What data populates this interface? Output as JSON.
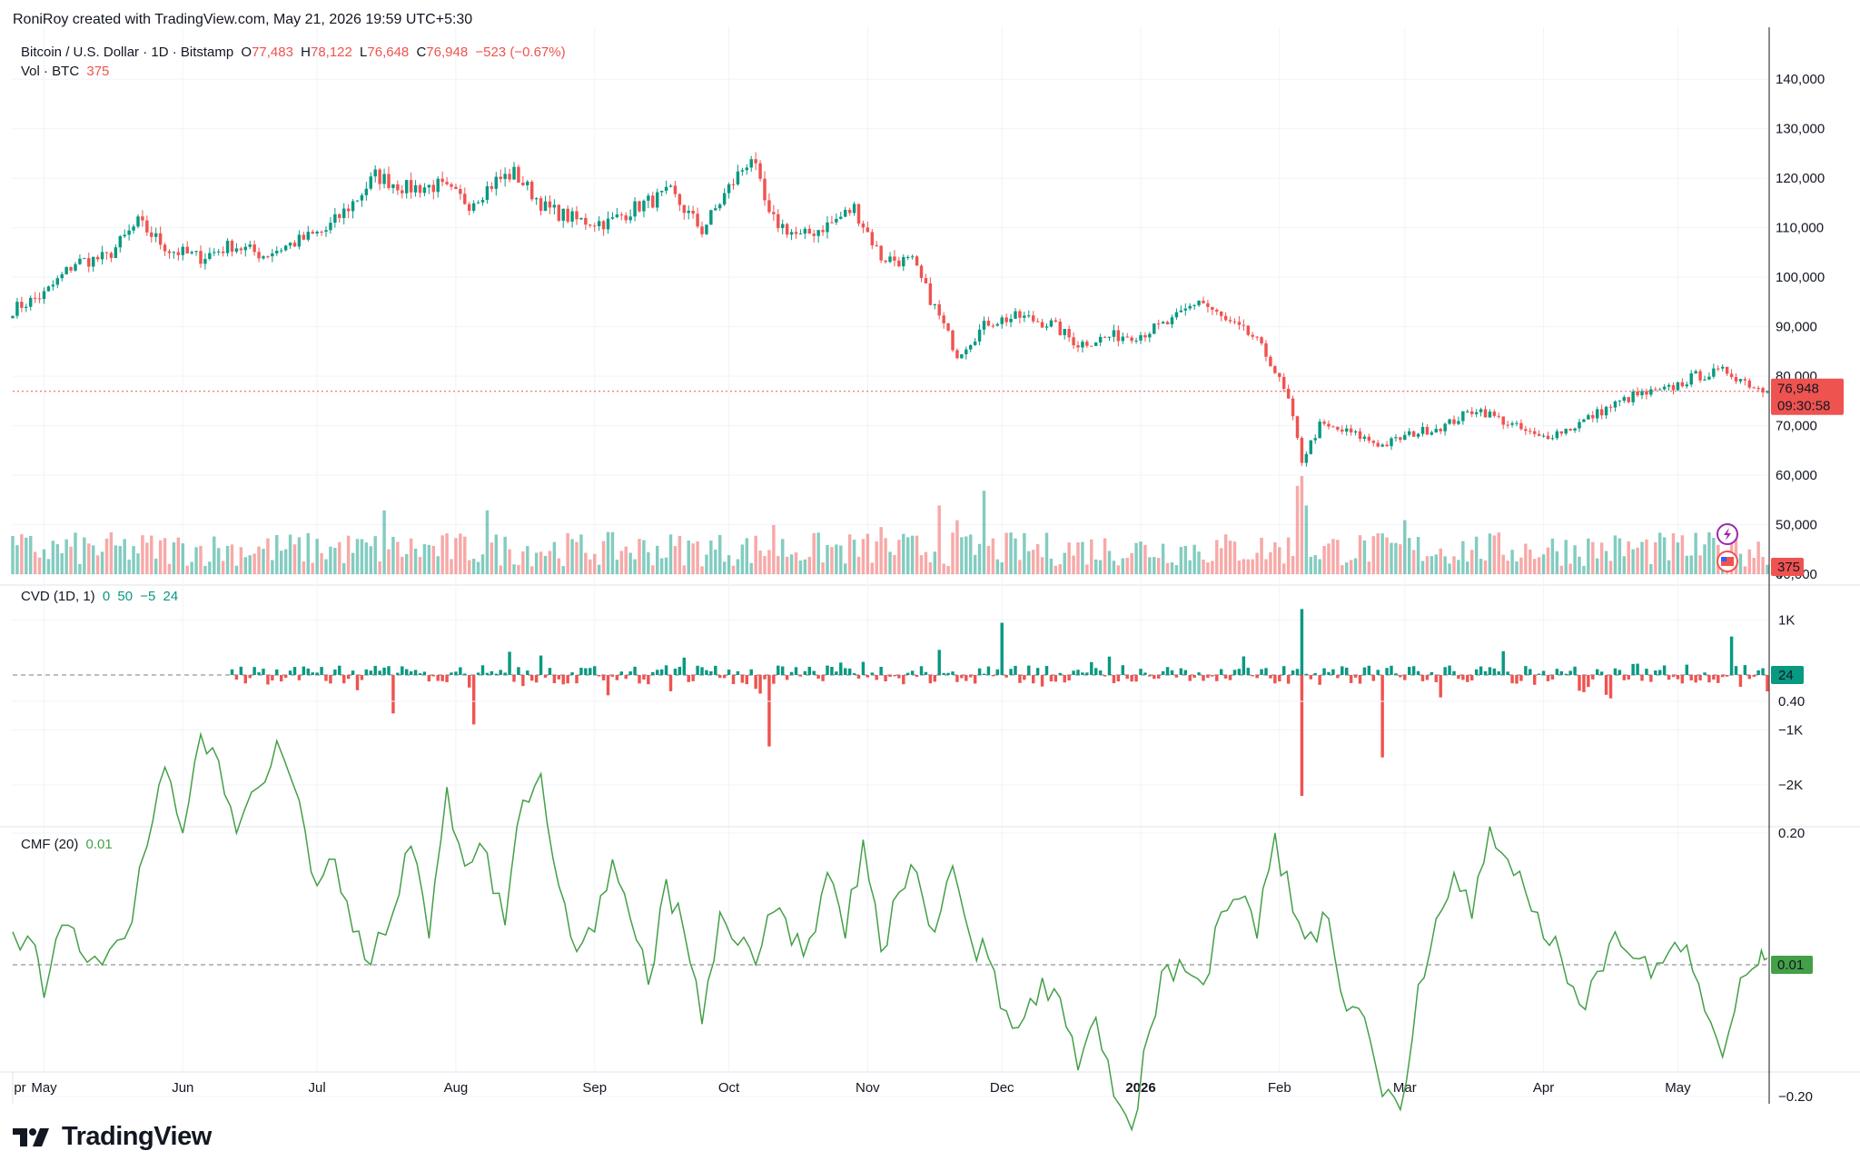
{
  "header": {
    "credit": "RoniRoy created with TradingView.com, May 21, 2026 19:59 UTC+5:30"
  },
  "legend_price": {
    "symbol": "Bitcoin / U.S. Dollar · 1D · Bitstamp",
    "open_label": "O",
    "open": "77,483",
    "high_label": "H",
    "high": "78,122",
    "low_label": "L",
    "low": "76,648",
    "close_label": "C",
    "close": "76,948",
    "change": "−523 (−0.67%)"
  },
  "legend_volume": {
    "label": "Vol · BTC",
    "value": "375"
  },
  "legend_cvd": {
    "label": "CVD (1D, 1)",
    "v1": "0",
    "v2": "50",
    "v3": "−5",
    "v4": "24"
  },
  "legend_cmf": {
    "label": "CMF (20)",
    "value": "0.01"
  },
  "badges": {
    "price": "76,948",
    "countdown": "09:30:58",
    "volume": "375",
    "cvd": "24",
    "cmf": "0.01"
  },
  "footer": {
    "brand": "TradingView"
  },
  "colors": {
    "up": "#089981",
    "down": "#ef5350",
    "cmf_line": "#43a047",
    "grid": "#f0f3fa"
  },
  "icons": [
    "flash-icon",
    "us-flag-icon",
    "tradingview-logo-icon"
  ],
  "chart_data": [
    {
      "type": "candlestick",
      "title": "Bitcoin / U.S. Dollar · 1D · Bitstamp",
      "x_axis": {
        "start": "2025-04-24",
        "end": "2026-05-21",
        "tick_labels": [
          "pr",
          "May",
          "Jun",
          "Jul",
          "Aug",
          "Sep",
          "Oct",
          "Nov",
          "Dec",
          "2026",
          "Feb",
          "Mar",
          "Apr",
          "May"
        ]
      },
      "y_axis": {
        "range": [
          40000,
          145000
        ],
        "tick_labels": [
          "140,000",
          "130,000",
          "120,000",
          "110,000",
          "100,000",
          "90,000",
          "80,000",
          "70,000",
          "60,000",
          "50,000",
          "40,000"
        ]
      },
      "series": [
        {
          "name": "Bitcoin / U.S. Dollar",
          "close_path": [
            [
              "2025-04-24",
              93500
            ],
            [
              "2025-05-01",
              96500
            ],
            [
              "2025-05-08",
              103000
            ],
            [
              "2025-05-15",
              104000
            ],
            [
              "2025-05-22",
              111000
            ],
            [
              "2025-05-29",
              105500
            ],
            [
              "2025-06-05",
              104000
            ],
            [
              "2025-06-12",
              106500
            ],
            [
              "2025-06-19",
              104500
            ],
            [
              "2025-06-26",
              107000
            ],
            [
              "2025-07-03",
              109500
            ],
            [
              "2025-07-10",
              116000
            ],
            [
              "2025-07-14",
              120500
            ],
            [
              "2025-07-21",
              118000
            ],
            [
              "2025-07-28",
              118500
            ],
            [
              "2025-08-04",
              115000
            ],
            [
              "2025-08-10",
              119500
            ],
            [
              "2025-08-14",
              121000
            ],
            [
              "2025-08-21",
              114000
            ],
            [
              "2025-08-28",
              111500
            ],
            [
              "2025-09-04",
              111000
            ],
            [
              "2025-09-11",
              114500
            ],
            [
              "2025-09-18",
              117000
            ],
            [
              "2025-09-25",
              109500
            ],
            [
              "2025-10-01",
              118000
            ],
            [
              "2025-10-06",
              124500
            ],
            [
              "2025-10-10",
              112000
            ],
            [
              "2025-10-17",
              108000
            ],
            [
              "2025-10-24",
              111000
            ],
            [
              "2025-10-29",
              114000
            ],
            [
              "2025-11-04",
              104000
            ],
            [
              "2025-11-11",
              103000
            ],
            [
              "2025-11-17",
              92000
            ],
            [
              "2025-11-21",
              84500
            ],
            [
              "2025-11-28",
              91000
            ],
            [
              "2025-12-05",
              92000
            ],
            [
              "2025-12-12",
              90500
            ],
            [
              "2025-12-18",
              86500
            ],
            [
              "2025-12-25",
              88000
            ],
            [
              "2026-01-01",
              88500
            ],
            [
              "2026-01-08",
              91000
            ],
            [
              "2026-01-14",
              95500
            ],
            [
              "2026-01-20",
              91000
            ],
            [
              "2026-01-26",
              88000
            ],
            [
              "2026-01-30",
              83000
            ],
            [
              "2026-02-03",
              75000
            ],
            [
              "2026-02-06",
              63000
            ],
            [
              "2026-02-10",
              70000
            ],
            [
              "2026-02-17",
              68500
            ],
            [
              "2026-02-24",
              66000
            ],
            [
              "2026-03-03",
              68500
            ],
            [
              "2026-03-10",
              70000
            ],
            [
              "2026-03-17",
              73500
            ],
            [
              "2026-03-24",
              70500
            ],
            [
              "2026-03-31",
              67500
            ],
            [
              "2026-04-07",
              69500
            ],
            [
              "2026-04-14",
              73000
            ],
            [
              "2026-04-21",
              76000
            ],
            [
              "2026-04-28",
              77000
            ],
            [
              "2026-05-05",
              80000
            ],
            [
              "2026-05-12",
              81000
            ],
            [
              "2026-05-18",
              78000
            ],
            [
              "2026-05-21",
              76948
            ]
          ]
        }
      ],
      "last_price": 76948
    },
    {
      "type": "bar",
      "title": "Vol · BTC",
      "y_axis": {
        "tick_labels": [
          "0"
        ]
      },
      "series": [
        {
          "name": "Vol · BTC",
          "last_value": 375
        }
      ]
    },
    {
      "type": "bar",
      "title": "CVD (1D, 1)",
      "y_axis": {
        "range": [
          -2300,
          1200
        ],
        "tick_labels": [
          "1K",
          "−1K",
          "−2K"
        ]
      },
      "series": [
        {
          "name": "CVD (1D, 1)",
          "last_value": 24,
          "notable_values": [
            [
              "2025-07-18",
              -700
            ],
            [
              "2025-08-05",
              -900
            ],
            [
              "2025-10-10",
              -1300
            ],
            [
              "2025-12-01",
              950
            ],
            [
              "2026-02-06",
              -2200
            ],
            [
              "2026-02-06",
              1200
            ],
            [
              "2026-02-24",
              -1500
            ],
            [
              "2026-05-13",
              700
            ]
          ]
        }
      ]
    },
    {
      "type": "line",
      "title": "CMF (20)",
      "y_axis": {
        "range": [
          -0.28,
          0.42
        ],
        "tick_labels": [
          "0.40",
          "0.20",
          "−0.20"
        ]
      },
      "series": [
        {
          "name": "CMF (20)",
          "points": [
            [
              "2025-04-24",
              0.05
            ],
            [
              "2025-04-29",
              0.03
            ],
            [
              "2025-05-01",
              -0.05
            ],
            [
              "2025-05-05",
              0.06
            ],
            [
              "2025-05-09",
              0.02
            ],
            [
              "2025-05-14",
              0.0
            ],
            [
              "2025-05-19",
              0.04
            ],
            [
              "2025-05-24",
              0.18
            ],
            [
              "2025-05-28",
              0.3
            ],
            [
              "2025-06-01",
              0.2
            ],
            [
              "2025-06-05",
              0.35
            ],
            [
              "2025-06-09",
              0.31
            ],
            [
              "2025-06-13",
              0.2
            ],
            [
              "2025-06-18",
              0.27
            ],
            [
              "2025-06-22",
              0.34
            ],
            [
              "2025-06-27",
              0.25
            ],
            [
              "2025-07-01",
              0.12
            ],
            [
              "2025-07-05",
              0.16
            ],
            [
              "2025-07-09",
              0.05
            ],
            [
              "2025-07-13",
              0.0
            ],
            [
              "2025-07-18",
              0.08
            ],
            [
              "2025-07-22",
              0.18
            ],
            [
              "2025-07-26",
              0.04
            ],
            [
              "2025-07-30",
              0.27
            ],
            [
              "2025-08-03",
              0.15
            ],
            [
              "2025-08-08",
              0.17
            ],
            [
              "2025-08-12",
              0.06
            ],
            [
              "2025-08-16",
              0.25
            ],
            [
              "2025-08-20",
              0.29
            ],
            [
              "2025-08-24",
              0.12
            ],
            [
              "2025-08-28",
              0.02
            ],
            [
              "2025-09-01",
              0.05
            ],
            [
              "2025-09-05",
              0.16
            ],
            [
              "2025-09-09",
              0.07
            ],
            [
              "2025-09-13",
              -0.03
            ],
            [
              "2025-09-17",
              0.13
            ],
            [
              "2025-09-21",
              0.05
            ],
            [
              "2025-09-25",
              -0.09
            ],
            [
              "2025-09-29",
              0.08
            ],
            [
              "2025-10-03",
              0.03
            ],
            [
              "2025-10-07",
              0.0
            ],
            [
              "2025-10-11",
              0.08
            ],
            [
              "2025-10-15",
              0.03
            ],
            [
              "2025-10-19",
              0.04
            ],
            [
              "2025-10-23",
              0.14
            ],
            [
              "2025-10-27",
              0.04
            ],
            [
              "2025-10-31",
              0.19
            ],
            [
              "2025-11-04",
              0.02
            ],
            [
              "2025-11-08",
              0.11
            ],
            [
              "2025-11-12",
              0.14
            ],
            [
              "2025-11-16",
              0.05
            ],
            [
              "2025-11-20",
              0.15
            ],
            [
              "2025-11-24",
              0.04
            ],
            [
              "2025-11-28",
              0.01
            ],
            [
              "2025-12-02",
              -0.07
            ],
            [
              "2025-12-06",
              -0.08
            ],
            [
              "2025-12-10",
              -0.02
            ],
            [
              "2025-12-14",
              -0.05
            ],
            [
              "2025-12-18",
              -0.16
            ],
            [
              "2025-12-22",
              -0.08
            ],
            [
              "2025-12-26",
              -0.2
            ],
            [
              "2025-12-30",
              -0.25
            ],
            [
              "2026-01-03",
              -0.1
            ],
            [
              "2026-01-07",
              0.0
            ],
            [
              "2026-01-11",
              -0.01
            ],
            [
              "2026-01-15",
              -0.03
            ],
            [
              "2026-01-19",
              0.08
            ],
            [
              "2026-01-23",
              0.1
            ],
            [
              "2026-01-27",
              0.04
            ],
            [
              "2026-01-31",
              0.2
            ],
            [
              "2026-02-04",
              0.08
            ],
            [
              "2026-02-08",
              0.05
            ],
            [
              "2026-02-12",
              0.07
            ],
            [
              "2026-02-16",
              -0.07
            ],
            [
              "2026-02-20",
              -0.08
            ],
            [
              "2026-02-24",
              -0.2
            ],
            [
              "2026-02-28",
              -0.22
            ],
            [
              "2026-03-04",
              -0.03
            ],
            [
              "2026-03-08",
              0.07
            ],
            [
              "2026-03-12",
              0.14
            ],
            [
              "2026-03-16",
              0.07
            ],
            [
              "2026-03-20",
              0.21
            ],
            [
              "2026-03-24",
              0.16
            ],
            [
              "2026-03-28",
              0.11
            ],
            [
              "2026-04-01",
              0.04
            ],
            [
              "2026-04-05",
              0.01
            ],
            [
              "2026-04-09",
              -0.06
            ],
            [
              "2026-04-13",
              -0.01
            ],
            [
              "2026-04-17",
              0.05
            ],
            [
              "2026-04-21",
              0.01
            ],
            [
              "2026-04-25",
              -0.02
            ],
            [
              "2026-04-29",
              0.02
            ],
            [
              "2026-05-03",
              0.03
            ],
            [
              "2026-05-07",
              -0.07
            ],
            [
              "2026-05-11",
              -0.14
            ],
            [
              "2026-05-15",
              -0.02
            ],
            [
              "2026-05-19",
              0.0
            ],
            [
              "2026-05-21",
              0.01
            ]
          ]
        }
      ],
      "last_value": 0.01
    }
  ]
}
